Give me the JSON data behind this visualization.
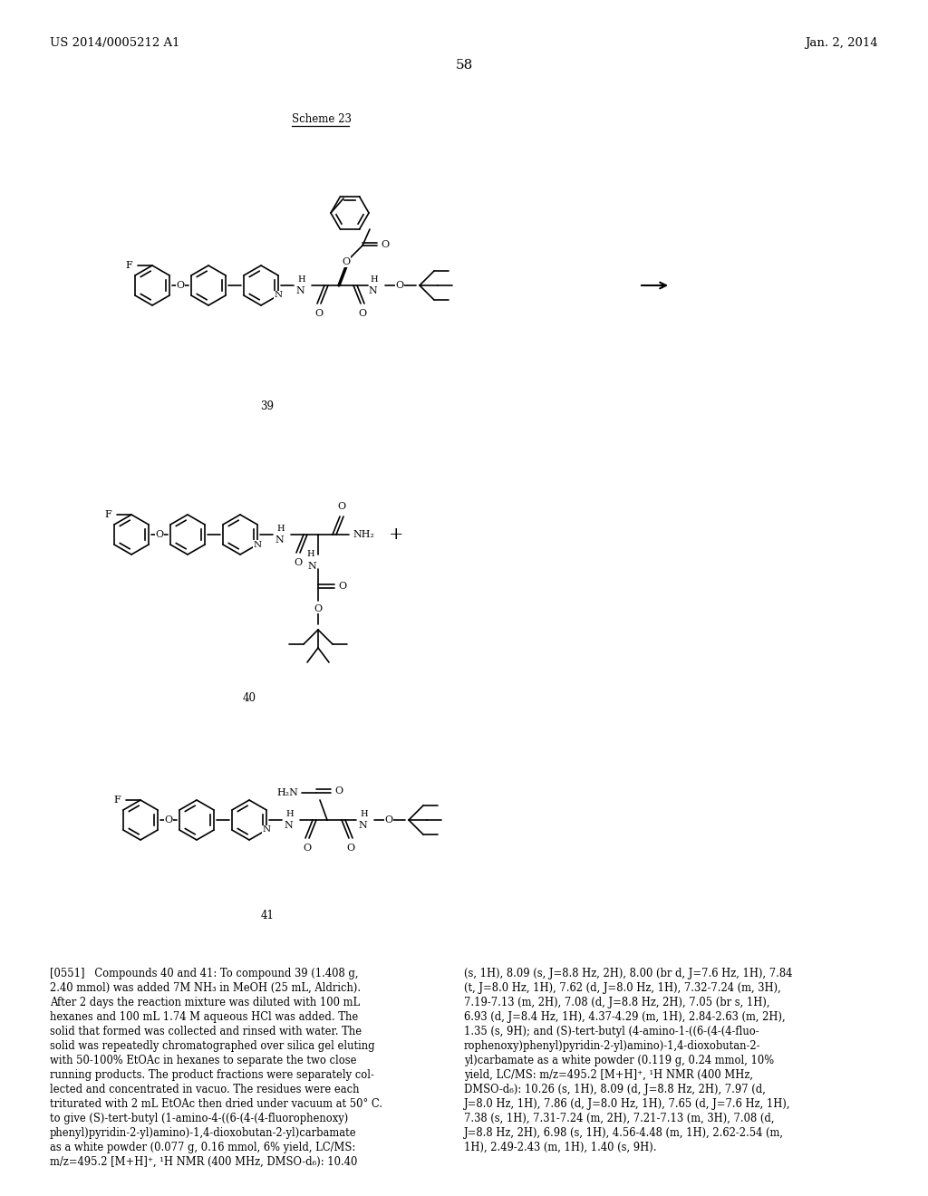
{
  "header_left": "US 2014/0005212 A1",
  "header_right": "Jan. 2, 2014",
  "page_number": "58",
  "scheme_label": "Scheme 23",
  "bg": "#ffffff",
  "text_color": "#000000"
}
